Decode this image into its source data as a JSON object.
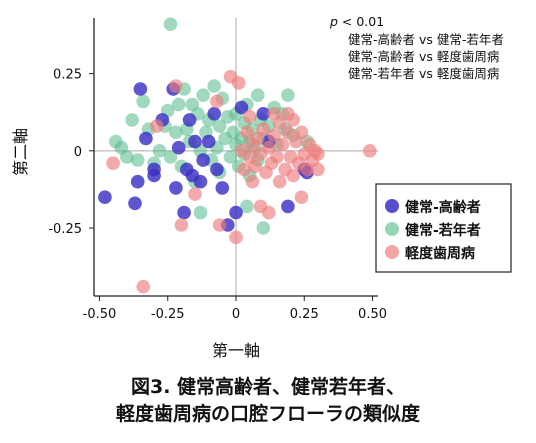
{
  "chart_data": {
    "type": "scatter",
    "xlabel": "第一軸",
    "ylabel": "第二軸",
    "xlim": [
      -0.52,
      0.52
    ],
    "ylim": [
      -0.47,
      0.43
    ],
    "x_ticks": [
      -0.5,
      -0.25,
      0,
      0.25,
      0.5
    ],
    "x_tick_labels": [
      "-0.50",
      "-0.25",
      "0",
      "0.25",
      "0.50"
    ],
    "y_ticks": [
      0.25,
      0,
      -0.25
    ],
    "y_tick_labels": [
      "0.25",
      "0",
      "-0.25"
    ],
    "annotation": {
      "p_label": "p",
      "p_rest": " < 0.01",
      "lines": [
        "健常-高齢者 vs 健常-若年者",
        "健常-高齢者 vs 軽度歯周病",
        "健常-若年者 vs 軽度歯周病"
      ]
    },
    "legend_position": "right",
    "series": [
      {
        "name": "健常-高齢者",
        "color": "#3a2fc4",
        "points": [
          [
            -0.48,
            -0.15
          ],
          [
            -0.37,
            -0.17
          ],
          [
            -0.36,
            -0.1
          ],
          [
            -0.35,
            0.2
          ],
          [
            -0.33,
            0.04
          ],
          [
            -0.3,
            -0.08
          ],
          [
            -0.3,
            -0.06
          ],
          [
            -0.27,
            0.1
          ],
          [
            -0.23,
            0.2
          ],
          [
            -0.22,
            -0.12
          ],
          [
            -0.21,
            0.01
          ],
          [
            -0.19,
            -0.2
          ],
          [
            -0.18,
            -0.06
          ],
          [
            -0.17,
            0.1
          ],
          [
            -0.16,
            -0.08
          ],
          [
            -0.15,
            0.03
          ],
          [
            -0.13,
            -0.1
          ],
          [
            -0.12,
            -0.03
          ],
          [
            -0.1,
            0.03
          ],
          [
            -0.08,
            0.12
          ],
          [
            -0.07,
            -0.06
          ],
          [
            -0.05,
            -0.12
          ],
          [
            -0.03,
            -0.24
          ],
          [
            0.0,
            -0.2
          ],
          [
            0.02,
            0.14
          ],
          [
            0.1,
            0.12
          ],
          [
            0.12,
            0.03
          ],
          [
            0.19,
            -0.18
          ],
          [
            0.25,
            -0.06
          ],
          [
            0.26,
            -0.07
          ]
        ]
      },
      {
        "name": "健常-若年者",
        "color": "#52b987",
        "points": [
          [
            -0.44,
            0.03
          ],
          [
            -0.42,
            0.01
          ],
          [
            -0.4,
            -0.02
          ],
          [
            -0.38,
            0.1
          ],
          [
            -0.36,
            -0.03
          ],
          [
            -0.34,
            0.16
          ],
          [
            -0.32,
            0.07
          ],
          [
            -0.3,
            -0.04
          ],
          [
            -0.28,
            0.0
          ],
          [
            -0.26,
            0.08
          ],
          [
            -0.25,
            0.13
          ],
          [
            -0.24,
            -0.02
          ],
          [
            -0.24,
            0.41
          ],
          [
            -0.22,
            0.06
          ],
          [
            -0.21,
            0.15
          ],
          [
            -0.2,
            -0.05
          ],
          [
            -0.19,
            0.2
          ],
          [
            -0.18,
            0.07
          ],
          [
            -0.17,
            0.03
          ],
          [
            -0.16,
            0.15
          ],
          [
            -0.15,
            -0.1
          ],
          [
            -0.14,
            0.12
          ],
          [
            -0.13,
            0.0
          ],
          [
            -0.12,
            0.18
          ],
          [
            -0.11,
            0.06
          ],
          [
            -0.1,
            0.1
          ],
          [
            -0.09,
            -0.03
          ],
          [
            -0.08,
            0.21
          ],
          [
            -0.07,
            0.01
          ],
          [
            -0.06,
            0.08
          ],
          [
            -0.06,
            -0.07
          ],
          [
            -0.05,
            0.17
          ],
          [
            -0.04,
            0.04
          ],
          [
            -0.03,
            0.11
          ],
          [
            -0.02,
            -0.02
          ],
          [
            -0.01,
            0.06
          ],
          [
            0.0,
            0.12
          ],
          [
            0.0,
            0.02
          ],
          [
            0.01,
            -0.05
          ],
          [
            0.02,
            0.04
          ],
          [
            0.03,
            0.09
          ],
          [
            0.03,
            -0.01
          ],
          [
            0.04,
            0.15
          ],
          [
            0.05,
            0.03
          ],
          [
            0.05,
            -0.08
          ],
          [
            0.06,
            0.07
          ],
          [
            0.07,
            0.01
          ],
          [
            0.08,
            0.18
          ],
          [
            0.08,
            -0.03
          ],
          [
            0.09,
            0.1
          ],
          [
            0.1,
            0.04
          ],
          [
            0.12,
            0.08
          ],
          [
            0.14,
            0.14
          ],
          [
            0.15,
            0.02
          ],
          [
            0.17,
            0.12
          ],
          [
            0.18,
            0.07
          ],
          [
            0.19,
            0.18
          ],
          [
            0.21,
            0.05
          ],
          [
            -0.13,
            -0.2
          ],
          [
            0.04,
            -0.18
          ],
          [
            0.1,
            -0.25
          ],
          [
            0.26,
            0.03
          ]
        ]
      },
      {
        "name": "軽度歯周病",
        "color": "#ee7d7d",
        "points": [
          [
            -0.45,
            -0.04
          ],
          [
            -0.34,
            -0.44
          ],
          [
            -0.29,
            0.08
          ],
          [
            -0.22,
            0.21
          ],
          [
            -0.2,
            -0.24
          ],
          [
            -0.15,
            -0.14
          ],
          [
            -0.07,
            0.16
          ],
          [
            -0.06,
            -0.24
          ],
          [
            -0.02,
            0.24
          ],
          [
            0.0,
            -0.28
          ],
          [
            0.01,
            0.22
          ],
          [
            0.02,
            0.0
          ],
          [
            0.03,
            -0.06
          ],
          [
            0.04,
            0.06
          ],
          [
            0.05,
            -0.02
          ],
          [
            0.06,
            0.02
          ],
          [
            0.07,
            -0.05
          ],
          [
            0.08,
            0.04
          ],
          [
            0.09,
            -0.01
          ],
          [
            0.09,
            -0.18
          ],
          [
            0.1,
            0.07
          ],
          [
            0.11,
            -0.07
          ],
          [
            0.12,
            0.01
          ],
          [
            0.12,
            -0.2
          ],
          [
            0.13,
            -0.04
          ],
          [
            0.14,
            0.05
          ],
          [
            0.15,
            -0.02
          ],
          [
            0.16,
            -0.1
          ],
          [
            0.16,
            0.09
          ],
          [
            0.17,
            0.02
          ],
          [
            0.18,
            -0.06
          ],
          [
            0.19,
            0.06
          ],
          [
            0.2,
            -0.02
          ],
          [
            0.21,
            0.1
          ],
          [
            0.21,
            -0.08
          ],
          [
            0.22,
            0.03
          ],
          [
            0.23,
            -0.04
          ],
          [
            0.24,
            0.06
          ],
          [
            0.25,
            -0.01
          ],
          [
            0.26,
            -0.06
          ],
          [
            0.27,
            0.02
          ],
          [
            0.28,
            -0.03
          ],
          [
            0.29,
            0.0
          ],
          [
            0.3,
            -0.01
          ],
          [
            0.24,
            -0.15
          ],
          [
            0.3,
            -0.06
          ],
          [
            0.14,
            0.12
          ],
          [
            0.19,
            0.12
          ],
          [
            0.49,
            0.0
          ],
          [
            0.06,
            -0.1
          ],
          [
            0.05,
            0.11
          ]
        ]
      }
    ]
  },
  "caption": {
    "line1": "図3. 健常高齢者、健常若年者、",
    "line2": "軽度歯周病の口腔フローラの類似度"
  }
}
